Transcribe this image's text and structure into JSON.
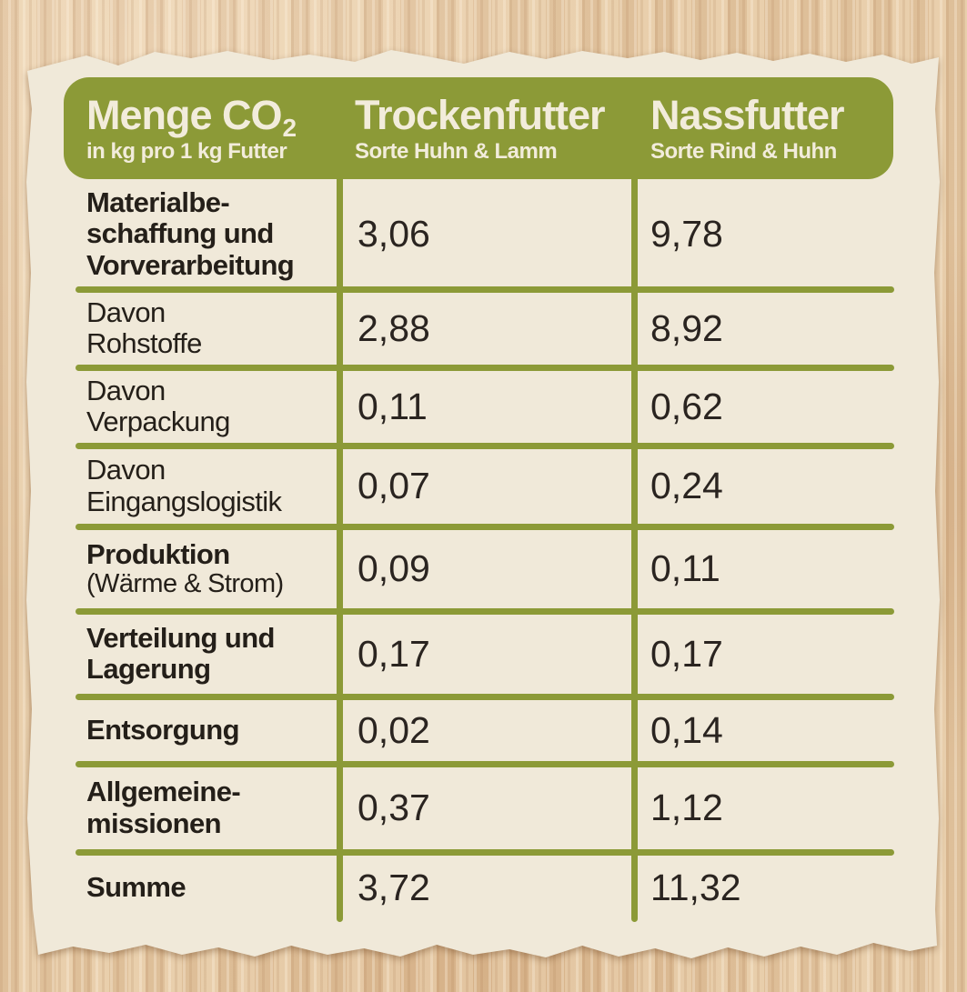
{
  "title": "Menge CO2 in kg pro 1 kg Futter",
  "colors": {
    "green": "#8c9a37",
    "paper": "#f0e9d9",
    "cardboard": "#e5c9a4",
    "text": "#272119",
    "header_text": "#f2ecdb"
  },
  "table": {
    "header": {
      "col1": {
        "title": "Menge CO",
        "subscript": "2",
        "subtitle": "in kg pro 1 kg Futter"
      },
      "col2": {
        "title": "Trockenfutter",
        "subtitle": "Sorte Huhn & Lamm"
      },
      "col3": {
        "title": "Nassfutter",
        "subtitle": "Sorte Rind & Huhn"
      }
    },
    "rows": [
      {
        "title": "Materialbe-\nschaffung und\nVorverarbeitung",
        "bold": true,
        "dry": "3,06",
        "wet": "9,78"
      },
      {
        "title": "Davon\nRohstoffe",
        "bold": false,
        "dry": "2,88",
        "wet": "8,92"
      },
      {
        "title": "Davon\nVerpackung",
        "bold": false,
        "dry": "0,11",
        "wet": "0,62"
      },
      {
        "title": "Davon\nEingangslogistik",
        "bold": false,
        "dry": "0,07",
        "wet": "0,24"
      },
      {
        "title": "Produktion",
        "subtitle": "(Wärme & Strom)",
        "bold": true,
        "dry": "0,09",
        "wet": "0,11"
      },
      {
        "title": "Verteilung und\nLagerung",
        "bold": true,
        "dry": "0,17",
        "wet": "0,17"
      },
      {
        "title": "Entsorgung",
        "bold": true,
        "dry": "0,02",
        "wet": "0,14"
      },
      {
        "title": "Allgemeine-\nmissionen",
        "bold": true,
        "dry": "0,37",
        "wet": "1,12"
      },
      {
        "title": "Summe",
        "bold": true,
        "dry": "3,72",
        "wet": "11,32"
      }
    ]
  },
  "chart_data": {
    "type": "table",
    "title": "Menge CO2 in kg pro 1 kg Futter",
    "columns": [
      "Menge CO2 in kg pro 1 kg Futter",
      "Trockenfutter (Sorte Huhn & Lamm)",
      "Nassfutter (Sorte Rind & Huhn)"
    ],
    "rows": [
      [
        "Materialbeschaffung und Vorverarbeitung",
        3.06,
        9.78
      ],
      [
        "Davon Rohstoffe",
        2.88,
        8.92
      ],
      [
        "Davon Verpackung",
        0.11,
        0.62
      ],
      [
        "Davon Eingangslogistik",
        0.07,
        0.24
      ],
      [
        "Produktion (Wärme & Strom)",
        0.09,
        0.11
      ],
      [
        "Verteilung und Lagerung",
        0.17,
        0.17
      ],
      [
        "Entsorgung",
        0.02,
        0.14
      ],
      [
        "Allgemeinemissionen",
        0.37,
        1.12
      ],
      [
        "Summe",
        3.72,
        11.32
      ]
    ]
  }
}
